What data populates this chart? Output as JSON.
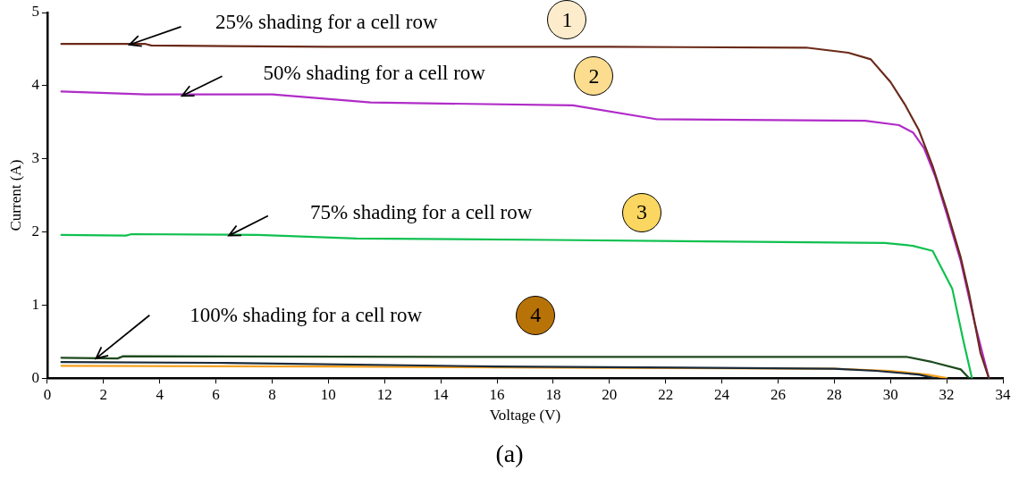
{
  "chart_data": {
    "type": "line",
    "xlabel": "Voltage (V)",
    "ylabel": "Current (A)",
    "xlim": [
      0,
      34
    ],
    "xticks": [
      0,
      2,
      4,
      6,
      8,
      10,
      12,
      14,
      16,
      18,
      20,
      22,
      24,
      26,
      28,
      30,
      32,
      34
    ],
    "ylim": [
      0,
      5
    ],
    "yticks": [
      0,
      1,
      2,
      3,
      4,
      5
    ],
    "grid": false,
    "legend": false,
    "marker": "none",
    "line_style": "solid",
    "series": [
      {
        "color": "#6b2a1a",
        "x": [
          0.5,
          3.5,
          3.7,
          10,
          20,
          27,
          28.5,
          29.3,
          30,
          30.5,
          31,
          31.5,
          32,
          32.5,
          32.8,
          33,
          33.2,
          33.5
        ],
        "values": [
          4.57,
          4.57,
          4.55,
          4.53,
          4.53,
          4.52,
          4.45,
          4.36,
          4.05,
          3.75,
          3.4,
          2.9,
          2.3,
          1.65,
          1.15,
          0.75,
          0.35,
          0
        ]
      },
      {
        "color": "#b02cc8",
        "x": [
          0.5,
          3.5,
          8,
          11.5,
          18.7,
          21.7,
          29.1,
          30.3,
          30.8,
          31.2,
          31.6,
          32,
          32.5,
          33,
          33.5
        ],
        "values": [
          3.92,
          3.88,
          3.88,
          3.77,
          3.73,
          3.54,
          3.52,
          3.46,
          3.36,
          3.14,
          2.75,
          2.25,
          1.6,
          0.75,
          0
        ]
      },
      {
        "color": "#10c050",
        "x": [
          0.5,
          2.8,
          3,
          7.5,
          11,
          18,
          29.8,
          30.8,
          31.5,
          32.2,
          32.6,
          32.9
        ],
        "values": [
          1.96,
          1.95,
          1.97,
          1.96,
          1.91,
          1.89,
          1.85,
          1.81,
          1.74,
          1.22,
          0.5,
          0
        ]
      },
      {
        "color": "#1e4a1e",
        "x": [
          0.5,
          2.5,
          2.7,
          16,
          30.6,
          31.5,
          32.5,
          32.8
        ],
        "values": [
          0.28,
          0.27,
          0.3,
          0.29,
          0.29,
          0.22,
          0.12,
          0
        ]
      },
      {
        "color": "#1a2a3a",
        "x": [
          0.5,
          6,
          16,
          28,
          29.5,
          31,
          31.6
        ],
        "values": [
          0.22,
          0.21,
          0.16,
          0.13,
          0.1,
          0.05,
          0
        ]
      },
      {
        "color": "#f5a020",
        "x": [
          0.5,
          10,
          20,
          28,
          30,
          31.3,
          32
        ],
        "values": [
          0.17,
          0.16,
          0.14,
          0.13,
          0.1,
          0.05,
          0
        ]
      }
    ],
    "annotations": [
      "25% shading for a cell row",
      "50% shading for a cell row",
      "75% shading for a cell row",
      "100% shading for a cell row",
      "1",
      "2",
      "3",
      "4",
      "(a)"
    ]
  }
}
